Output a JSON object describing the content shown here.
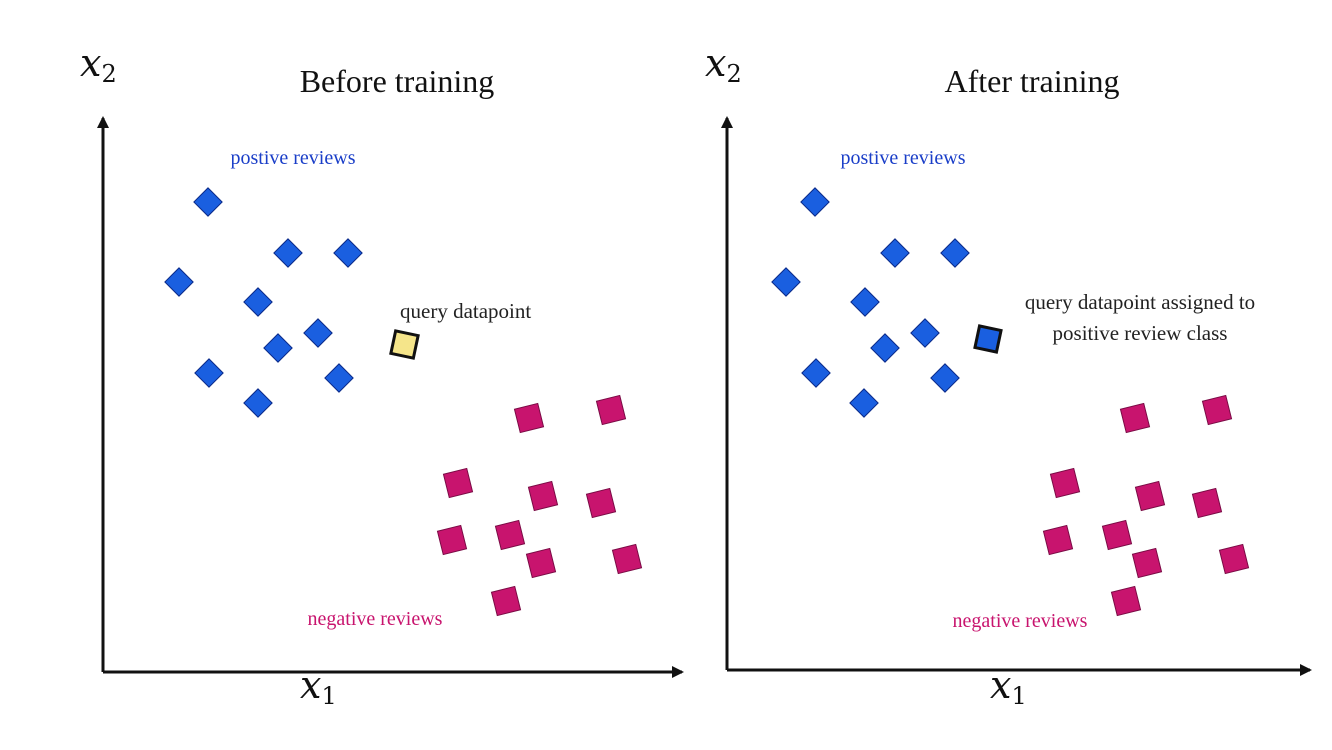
{
  "colors": {
    "positive": "#1a5fe0",
    "negative": "#c8146e",
    "query_before": "#f5e58a",
    "query_after": "#1a5fe0",
    "axis": "#111111"
  },
  "panels": [
    {
      "title": "Before training",
      "x_axis_label": "x",
      "x_axis_sub": "1",
      "y_axis_label": "x",
      "y_axis_sub": "2",
      "positive_label": "postive reviews",
      "negative_label": "negative reviews",
      "query_note_lines": [
        "query datapoint"
      ],
      "query_state": "unlabeled"
    },
    {
      "title": "After training",
      "x_axis_label": "x",
      "x_axis_sub": "1",
      "y_axis_label": "x",
      "y_axis_sub": "2",
      "positive_label": "postive reviews",
      "negative_label": "negative reviews",
      "query_note_lines": [
        "query datapoint assigned to",
        "positive review class"
      ],
      "query_state": "assigned-positive"
    }
  ]
}
